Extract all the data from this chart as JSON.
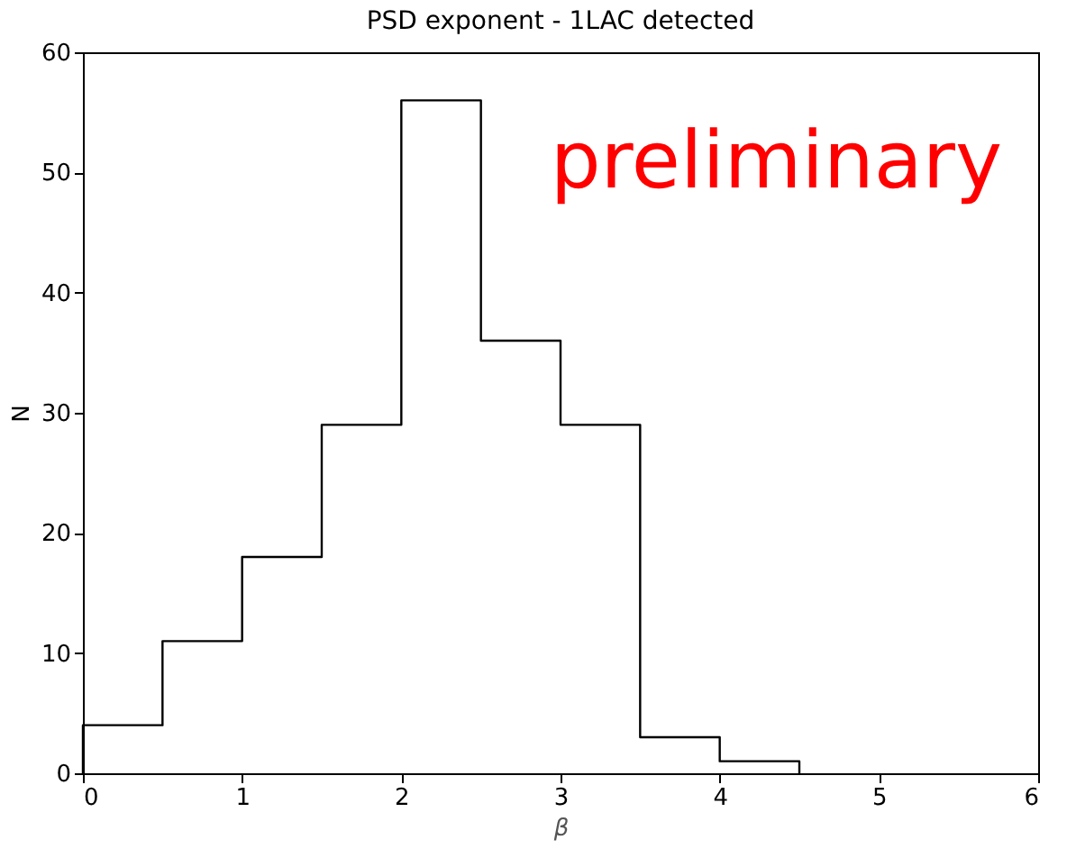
{
  "chart_data": {
    "type": "histogram",
    "title": "PSD exponent - 1LAC detected",
    "xlabel": "β",
    "ylabel": "N",
    "bins": [
      0,
      0.5,
      1,
      1.5,
      2,
      2.5,
      3,
      3.5,
      4,
      4.5
    ],
    "values": [
      4,
      11,
      18,
      29,
      56,
      36,
      29,
      3,
      1
    ],
    "color": "#000000",
    "xlim": [
      0,
      6
    ],
    "xticks": [
      0,
      1,
      2,
      3,
      4,
      5,
      6
    ],
    "ylim": [
      0,
      60
    ],
    "yticks": [
      0,
      10,
      20,
      30,
      40,
      50,
      60
    ],
    "grid": false,
    "annotations": [
      "preliminary"
    ]
  }
}
